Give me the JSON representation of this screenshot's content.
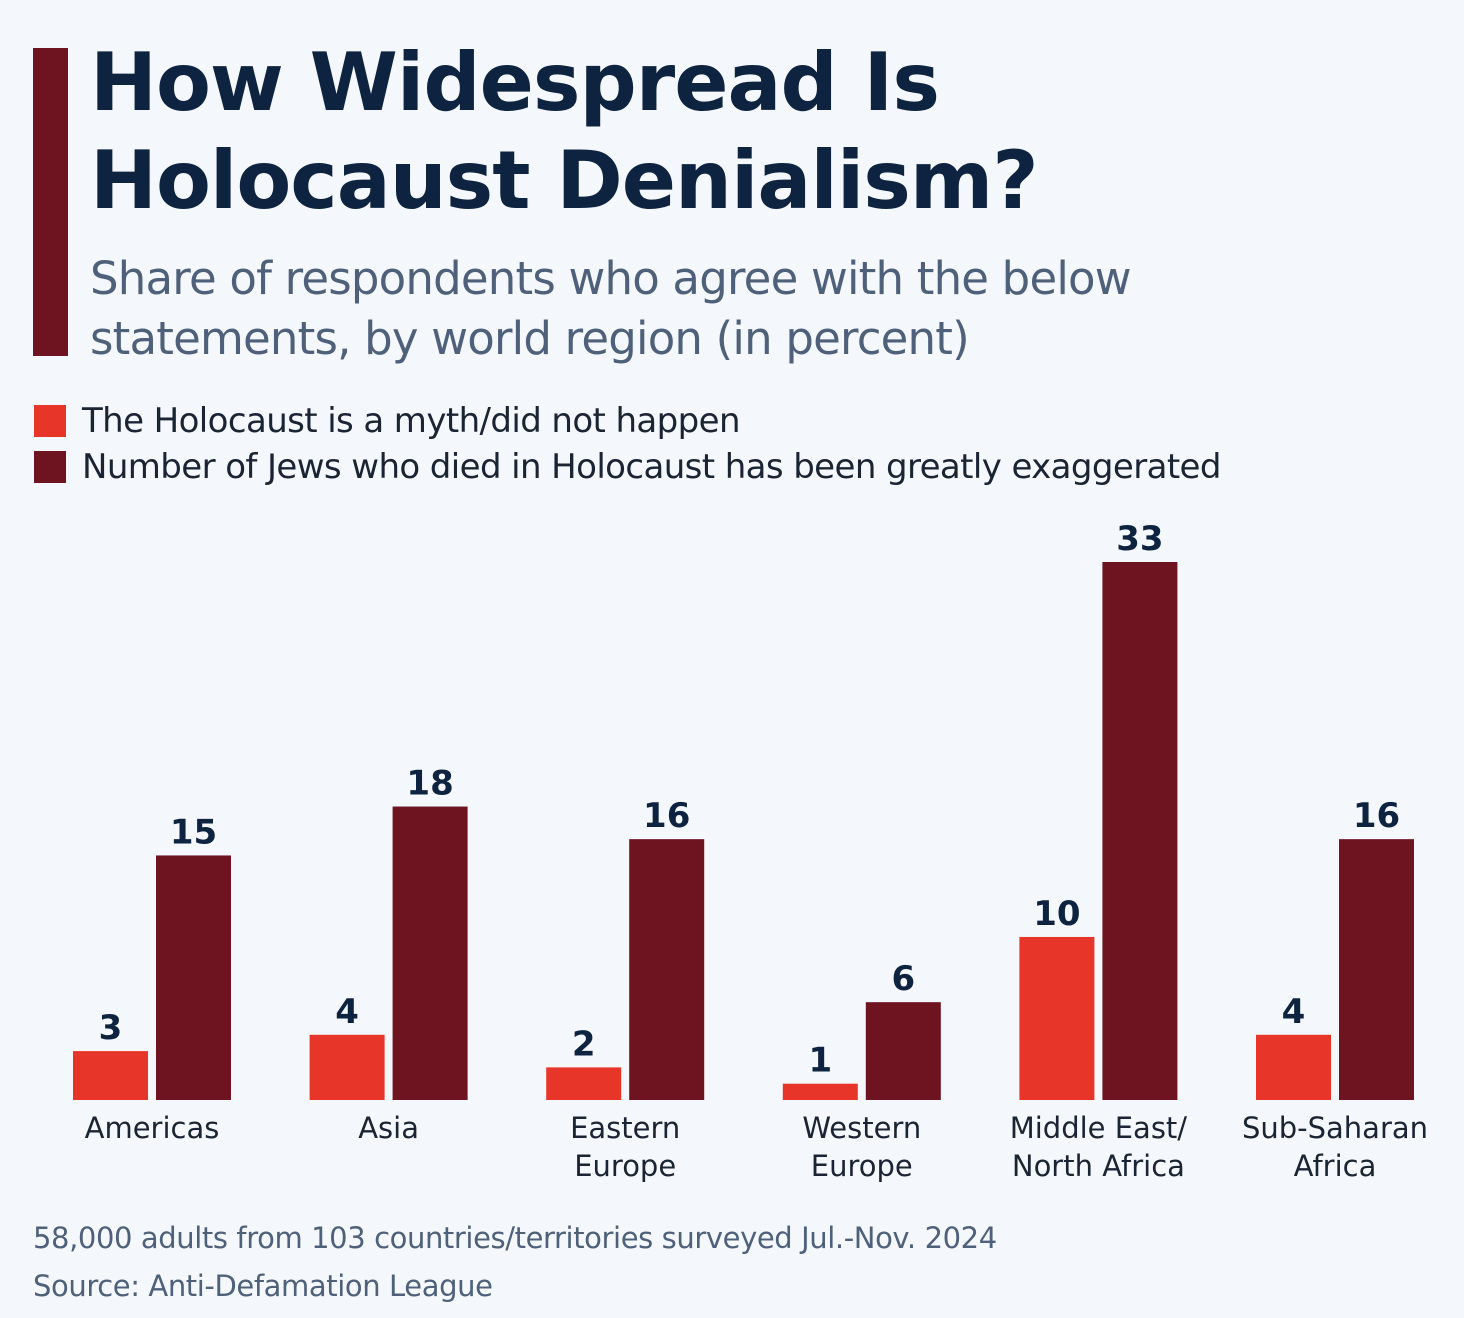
{
  "chart_data": {
    "type": "bar",
    "title": "How Widespread Is Holocaust Denialism?",
    "subtitle": "Share of respondents who agree with the below statements, by world region (in percent)",
    "categories": [
      [
        "Americas"
      ],
      [
        "Asia"
      ],
      [
        "Eastern",
        "Europe"
      ],
      [
        "Western",
        "Europe"
      ],
      [
        "Middle East/",
        "North Africa"
      ],
      [
        "Sub-Saharan",
        "Africa"
      ]
    ],
    "series": [
      {
        "name": "The Holocaust is a myth/did not happen",
        "color": "#e8352a",
        "values": [
          3,
          4,
          2,
          1,
          10,
          4
        ]
      },
      {
        "name": "Number of Jews who died in Holocaust has been greatly exaggerated",
        "color": "#6e1420",
        "values": [
          15,
          18,
          16,
          6,
          33,
          16
        ]
      }
    ],
    "ylim": [
      0,
      33
    ],
    "xlabel": "",
    "ylabel": "",
    "grid": false,
    "legend": "top-left"
  },
  "footer": {
    "note": "58,000 adults from 103 countries/territories surveyed Jul.-Nov. 2024",
    "source": "Source: Anti-Defamation League"
  }
}
